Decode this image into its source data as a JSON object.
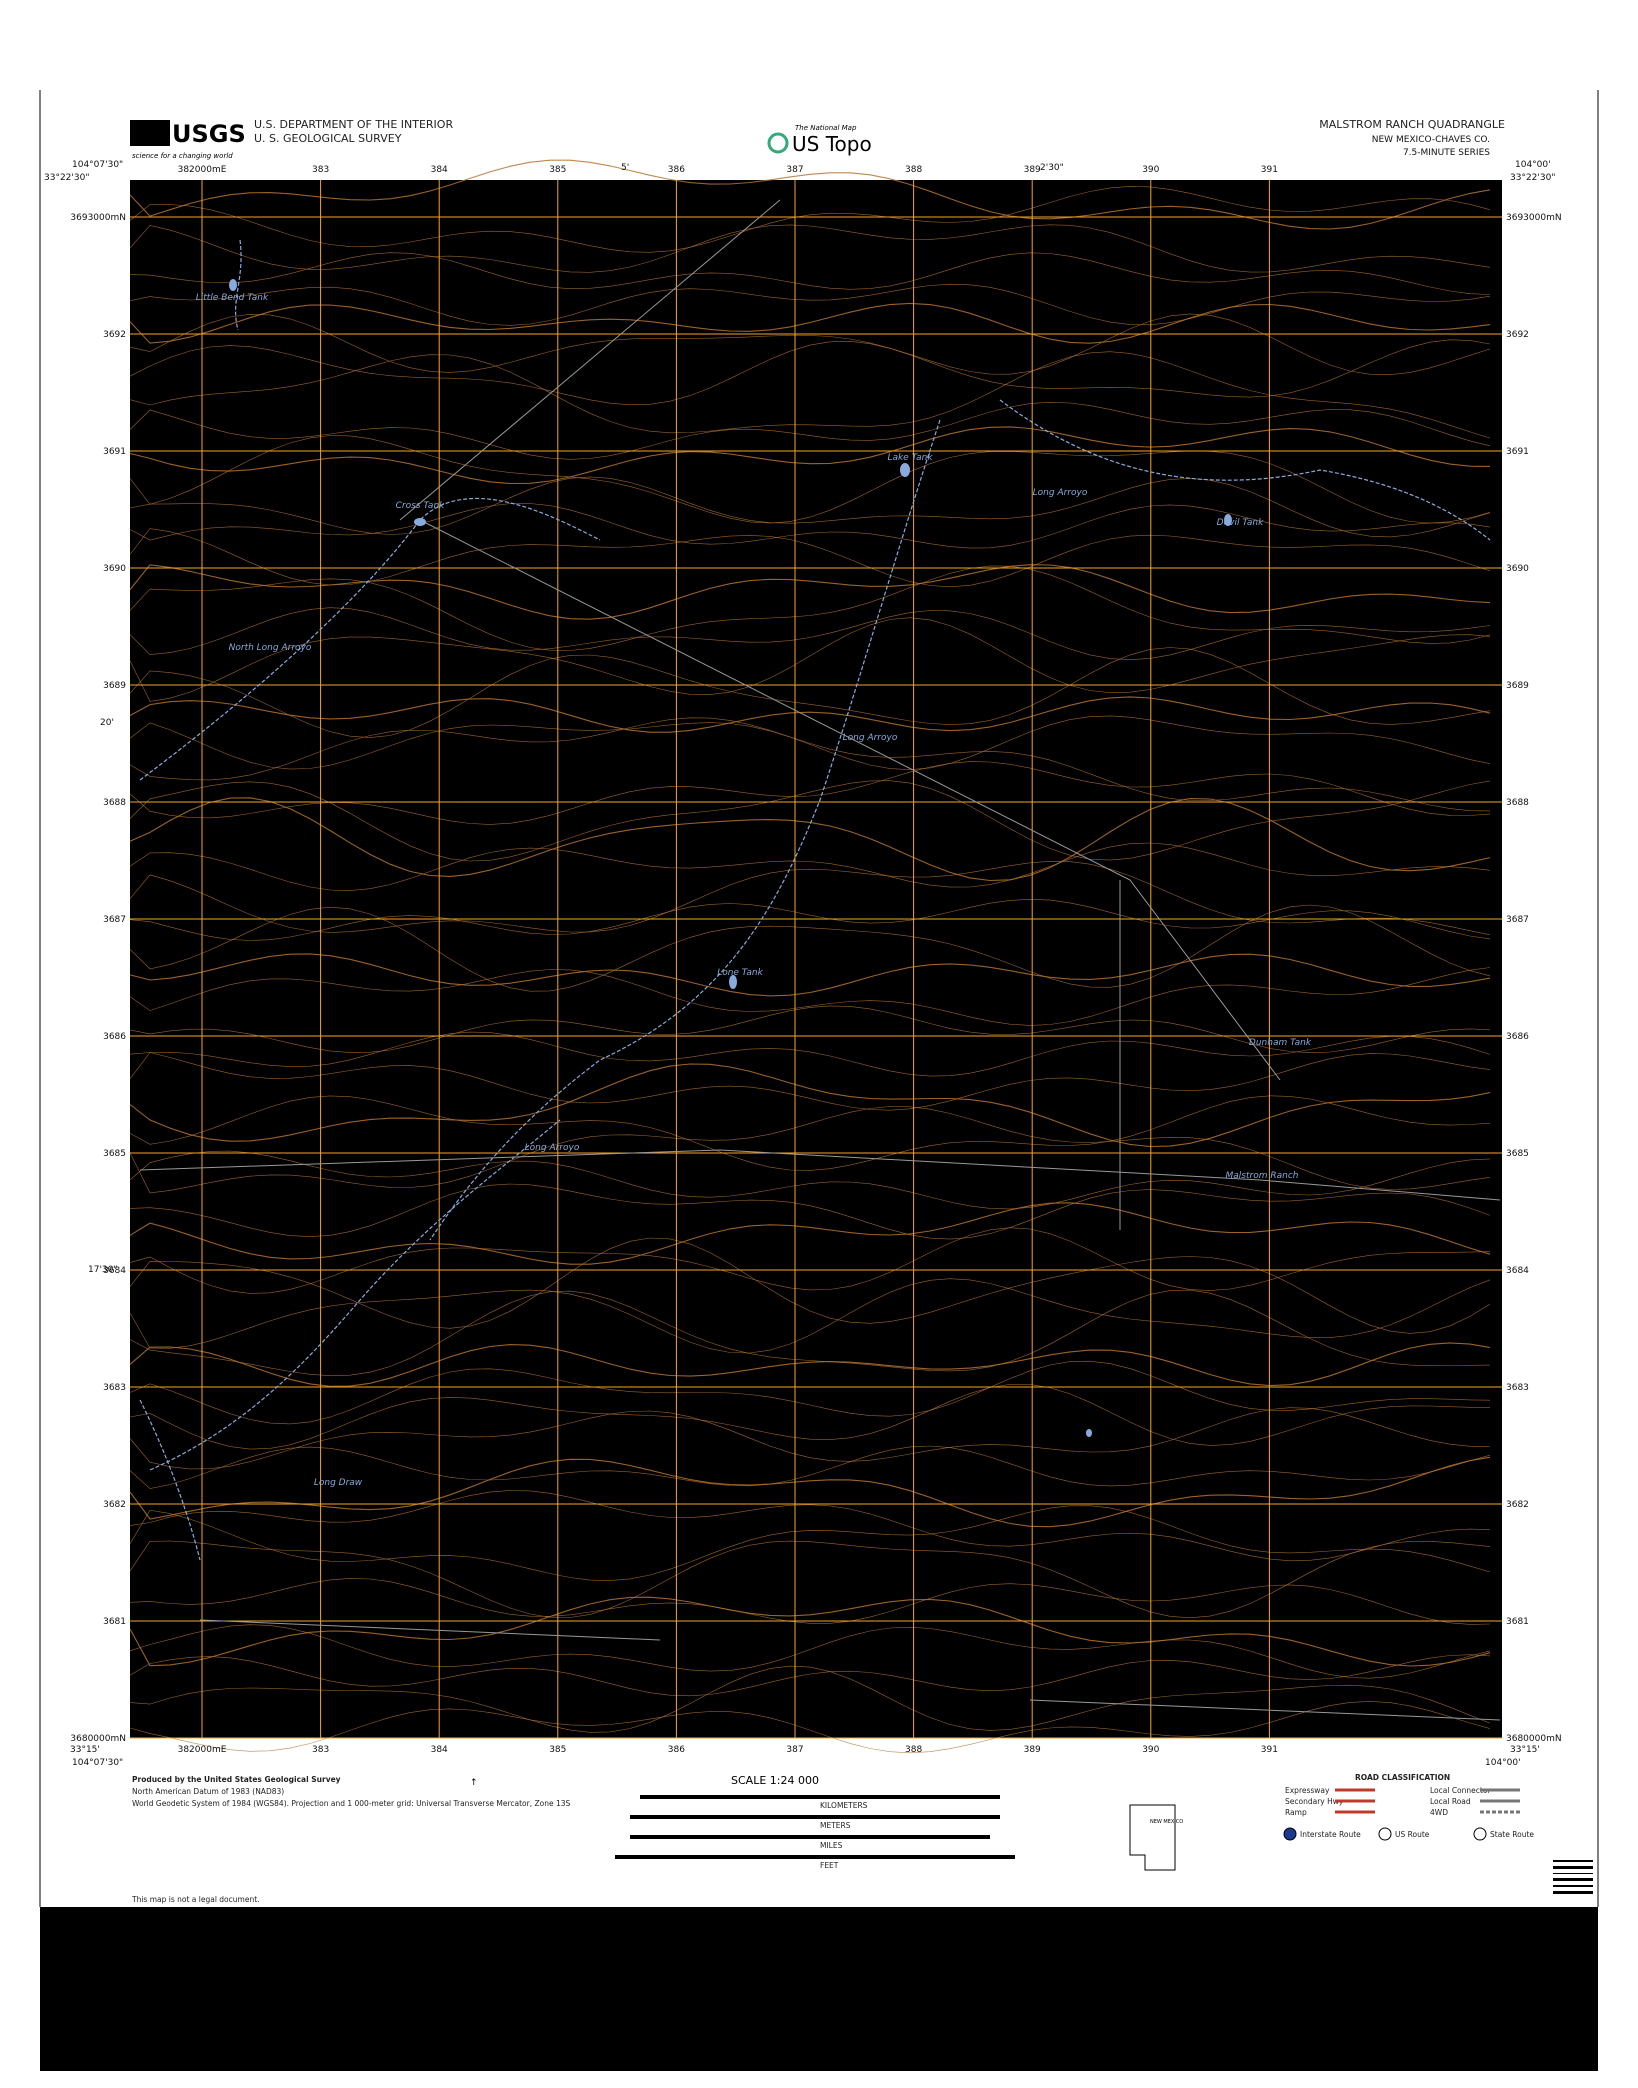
{
  "header": {
    "agency": "USGS",
    "tagline": "science for a changing world",
    "department": "U.S. DEPARTMENT OF THE INTERIOR",
    "survey": "U. S. GEOLOGICAL SURVEY",
    "program_note": "The National Map",
    "program": "US Topo",
    "quadrangle": "MALSTROM RANCH QUADRANGLE",
    "state_county": "NEW MEXICO-CHAVES CO.",
    "series": "7.5-MINUTE SERIES"
  },
  "corners": {
    "top_left_lon": "104°07'30\"",
    "top_left_lat": "33°22'30\"",
    "top_right_lon": "104°00'",
    "top_right_lat": "33°22'30\"",
    "bottom_left_lon": "104°07'30\"",
    "bottom_left_lat": "33°15'",
    "bottom_right_lon": "104°00'",
    "bottom_right_lat": "33°15'"
  },
  "minute_ticks": {
    "top": [
      "5'",
      "2'30\""
    ],
    "left": [
      "20'",
      "17'30\""
    ]
  },
  "eastings": [
    "382000mE",
    "383",
    "384",
    "385",
    "386",
    "387",
    "388",
    "389",
    "390",
    "391"
  ],
  "northings": [
    "3693000mN",
    "3692",
    "3691",
    "3690",
    "3689",
    "3688",
    "3687",
    "3686",
    "3685",
    "3684",
    "3683",
    "3682",
    "3681",
    "3680000mN"
  ],
  "places": [
    "Little Bend Tank",
    "Lake Tank",
    "Cross Tank",
    "North Long Arroyo",
    "Long Arroyo",
    "Devil Tank",
    "Long Arroyo",
    "Lone Tank",
    "Dunham Tank",
    "Malstrom Ranch",
    "Long Arroyo",
    "Long Draw"
  ],
  "footer": {
    "producer": "Produced by the United States Geological Survey",
    "datum": "North American Datum of 1983 (NAD83)",
    "projection": "World Geodetic System of 1984 (WGS84). Projection and 1 000-meter grid: Universal Transverse Mercator, Zone 13S",
    "legal": "This map is not a legal document.",
    "scale": "SCALE 1:24 000",
    "kilometers": "KILOMETERS",
    "meters": "METERS",
    "miles": "MILES",
    "feet": "FEET",
    "road_title": "ROAD CLASSIFICATION",
    "roads": [
      "Expressway",
      "Secondary Hwy",
      "Ramp",
      "Local Connector",
      "Local Road",
      "4WD"
    ],
    "routes": [
      "Interstate Route",
      "US Route",
      "State Route"
    ],
    "inset": "NEW MEXICO"
  }
}
